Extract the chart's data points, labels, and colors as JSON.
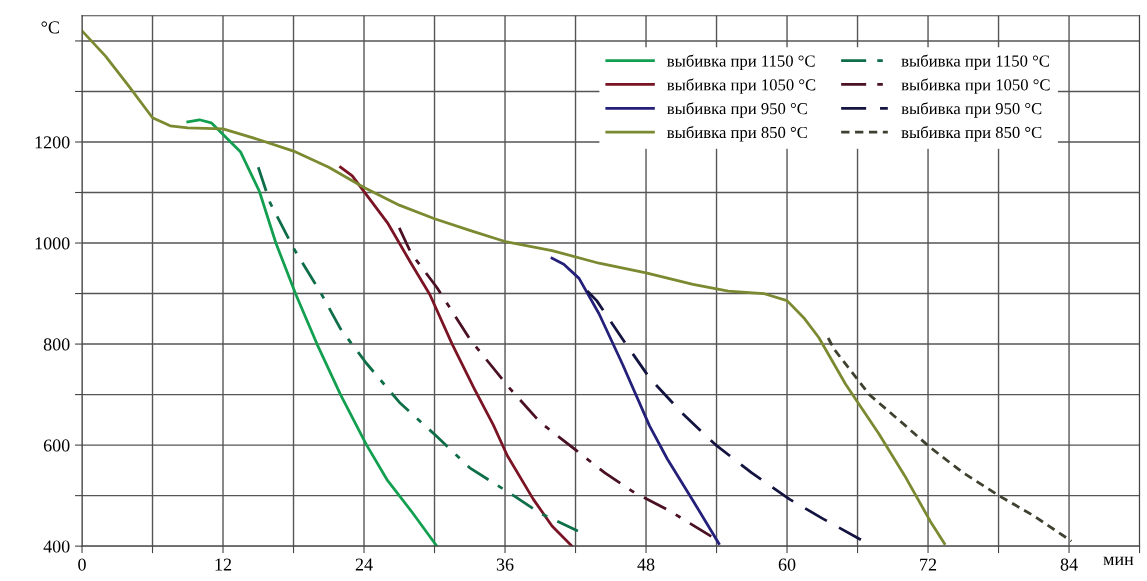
{
  "chart_data": {
    "type": "line",
    "xlabel": "мин",
    "ylabel": "°C",
    "xlim": [
      0,
      90
    ],
    "ylim": [
      400,
      1450
    ],
    "xticks": [
      0,
      {
        "value": 6,
        "label": null
      },
      12,
      {
        "value": 18,
        "label": null
      },
      24,
      {
        "value": 30,
        "label": null
      },
      36,
      {
        "value": 42,
        "label": null
      },
      48,
      {
        "value": 54,
        "label": null
      },
      60,
      {
        "value": 66,
        "label": null
      },
      72,
      {
        "value": 78,
        "label": null
      },
      84,
      {
        "value": 90,
        "label": null
      }
    ],
    "yticks": [
      400,
      {
        "value": 500,
        "label": null
      },
      600,
      {
        "value": 700,
        "label": null
      },
      800,
      {
        "value": 900,
        "label": null
      },
      1000,
      {
        "value": 1100,
        "label": null
      },
      1200,
      {
        "value": 1300,
        "label": null
      },
      {
        "value": 1400,
        "label": null
      }
    ],
    "grid": true,
    "legend": "top right",
    "marker": "none",
    "series": [
      {
        "name": "выбивка при 1150 °C",
        "color": "#12a050",
        "line_style": "solid",
        "x": [
          9,
          10,
          11,
          13.5,
          15.1,
          16.5,
          18.2,
          20,
          22,
          24.2,
          26,
          28,
          30.2
        ],
        "values": [
          1240,
          1244,
          1238,
          1180,
          1102,
          1000,
          898,
          800,
          700,
          601,
          530,
          470,
          400
        ]
      },
      {
        "name": "выбивка при 1050 °C",
        "color": "#7a1424",
        "line_style": "solid",
        "x": [
          22,
          23,
          26,
          28,
          29.6,
          31.5,
          33.4,
          35,
          36.2,
          38.4,
          40,
          41.7
        ],
        "values": [
          1150,
          1133,
          1040,
          960,
          898,
          800,
          711,
          640,
          579,
          493,
          440,
          400
        ]
      },
      {
        "name": "выбивка при 950 °C",
        "color": "#24207a",
        "line_style": "solid",
        "x": [
          40,
          41,
          42.3,
          44,
          46,
          48.3,
          49.8,
          52,
          54.2
        ],
        "values": [
          970,
          958,
          930,
          860,
          760,
          638,
          573,
          490,
          405
        ]
      },
      {
        "name": "выбивка при 850 °C",
        "color": "#7a8a30",
        "line_style": "solid",
        "x": [
          0,
          2,
          4,
          6,
          7.5,
          9,
          12,
          15,
          18,
          21,
          24,
          27,
          30,
          33,
          36,
          40,
          44,
          48,
          52,
          55,
          58,
          60,
          61.5,
          62.7,
          65,
          67.8,
          70,
          72.2,
          73.4
        ],
        "values": [
          1420,
          1370,
          1310,
          1248,
          1232,
          1228,
          1226,
          1205,
          1182,
          1150,
          1110,
          1075,
          1048,
          1025,
          1003,
          985,
          960,
          941,
          918,
          905,
          900,
          886,
          850,
          813,
          720,
          623,
          540,
          449,
          405
        ]
      },
      {
        "name": "выбивка при 1150 °C",
        "color": "#0e6e48",
        "line_style": "dashdot",
        "x": [
          15,
          16,
          18,
          20.4,
          22,
          24.2,
          27,
          30.2,
          33,
          36.8,
          39,
          42.2
        ],
        "values": [
          1150,
          1080,
          990,
          898,
          830,
          762,
          685,
          617,
          555,
          499,
          465,
          430
        ]
      },
      {
        "name": "выбивка при 1050 °C",
        "color": "#4a1024",
        "line_style": "dashdot",
        "x": [
          27,
          28,
          30.2,
          33,
          36.3,
          39,
          42.2,
          44.5,
          47,
          50,
          54.2
        ],
        "values": [
          1030,
          980,
          912,
          810,
          715,
          645,
          587,
          545,
          506,
          470,
          410
        ]
      },
      {
        "name": "выбивка при 950 °C",
        "color": "#141440",
        "line_style": "dashed",
        "x": [
          43,
          43.8,
          46,
          48.3,
          51,
          53.9,
          57,
          60.2,
          63,
          66.5
        ],
        "values": [
          905,
          886,
          810,
          733,
          665,
          601,
          545,
          493,
          455,
          410
        ]
      },
      {
        "name": "выбивка при 850 °C",
        "color": "#404030",
        "line_style": "shortdash",
        "x": [
          63.5,
          64,
          67,
          70,
          72.2,
          75,
          78.1,
          81,
          84.2
        ],
        "values": [
          812,
          790,
          700,
          640,
          595,
          545,
          499,
          460,
          410
        ]
      }
    ]
  }
}
